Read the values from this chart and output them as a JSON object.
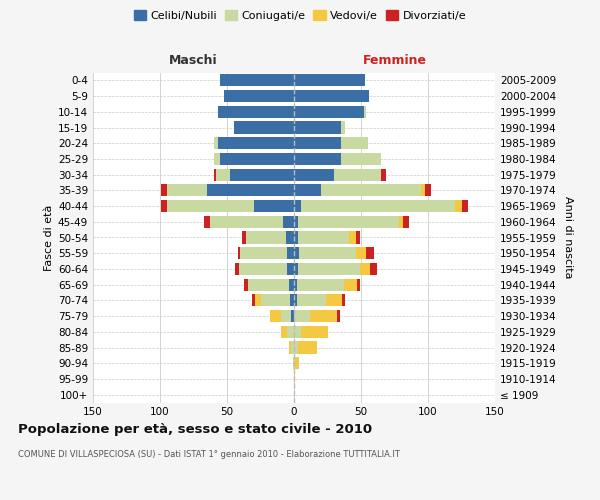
{
  "age_groups": [
    "100+",
    "95-99",
    "90-94",
    "85-89",
    "80-84",
    "75-79",
    "70-74",
    "65-69",
    "60-64",
    "55-59",
    "50-54",
    "45-49",
    "40-44",
    "35-39",
    "30-34",
    "25-29",
    "20-24",
    "15-19",
    "10-14",
    "5-9",
    "0-4"
  ],
  "birth_years": [
    "≤ 1909",
    "1910-1914",
    "1915-1919",
    "1920-1924",
    "1925-1929",
    "1930-1934",
    "1935-1939",
    "1940-1944",
    "1945-1949",
    "1950-1954",
    "1955-1959",
    "1960-1964",
    "1965-1969",
    "1970-1974",
    "1975-1979",
    "1980-1984",
    "1985-1989",
    "1990-1994",
    "1995-1999",
    "2000-2004",
    "2005-2009"
  ],
  "maschi": {
    "celibi": [
      0,
      0,
      0,
      0,
      0,
      2,
      3,
      4,
      5,
      5,
      6,
      8,
      30,
      65,
      48,
      55,
      57,
      45,
      57,
      52,
      55
    ],
    "coniugati": [
      0,
      0,
      1,
      2,
      5,
      8,
      22,
      30,
      36,
      35,
      30,
      55,
      65,
      30,
      10,
      5,
      3,
      0,
      0,
      0,
      0
    ],
    "vedovi": [
      0,
      0,
      0,
      2,
      5,
      8,
      4,
      0,
      0,
      0,
      0,
      0,
      0,
      0,
      0,
      0,
      0,
      0,
      0,
      0,
      0
    ],
    "divorziati": [
      0,
      0,
      0,
      0,
      0,
      0,
      2,
      3,
      3,
      2,
      3,
      4,
      4,
      4,
      2,
      0,
      0,
      0,
      0,
      0,
      0
    ]
  },
  "femmine": {
    "nubili": [
      0,
      0,
      0,
      0,
      0,
      0,
      2,
      2,
      3,
      4,
      3,
      3,
      5,
      20,
      30,
      35,
      35,
      35,
      52,
      56,
      53
    ],
    "coniugate": [
      0,
      0,
      1,
      3,
      5,
      12,
      22,
      35,
      46,
      42,
      38,
      75,
      115,
      75,
      35,
      30,
      20,
      3,
      2,
      0,
      0
    ],
    "vedove": [
      0,
      1,
      3,
      14,
      20,
      20,
      12,
      10,
      8,
      8,
      5,
      3,
      5,
      3,
      0,
      0,
      0,
      0,
      0,
      0,
      0
    ],
    "divorziate": [
      0,
      0,
      0,
      0,
      0,
      2,
      2,
      2,
      5,
      6,
      3,
      5,
      5,
      4,
      4,
      0,
      0,
      0,
      0,
      0,
      0
    ]
  },
  "colors": {
    "celibi": "#3a6ea5",
    "coniugati": "#c8d9a2",
    "vedovi": "#f5c842",
    "divorziati": "#cc2222"
  },
  "legend_labels": [
    "Celibi/Nubili",
    "Coniugati/e",
    "Vedovi/e",
    "Divorziati/e"
  ],
  "title": "Popolazione per età, sesso e stato civile - 2010",
  "subtitle": "COMUNE DI VILLASPECIOSA (SU) - Dati ISTAT 1° gennaio 2010 - Elaborazione TUTTITALIA.IT",
  "label_maschi": "Maschi",
  "label_femmine": "Femmine",
  "ylabel_left": "Fasce di età",
  "ylabel_right": "Anni di nascita",
  "xlim": 150,
  "bg_color": "#f5f5f5",
  "plot_bg": "#ffffff",
  "grid_color": "#cccccc"
}
